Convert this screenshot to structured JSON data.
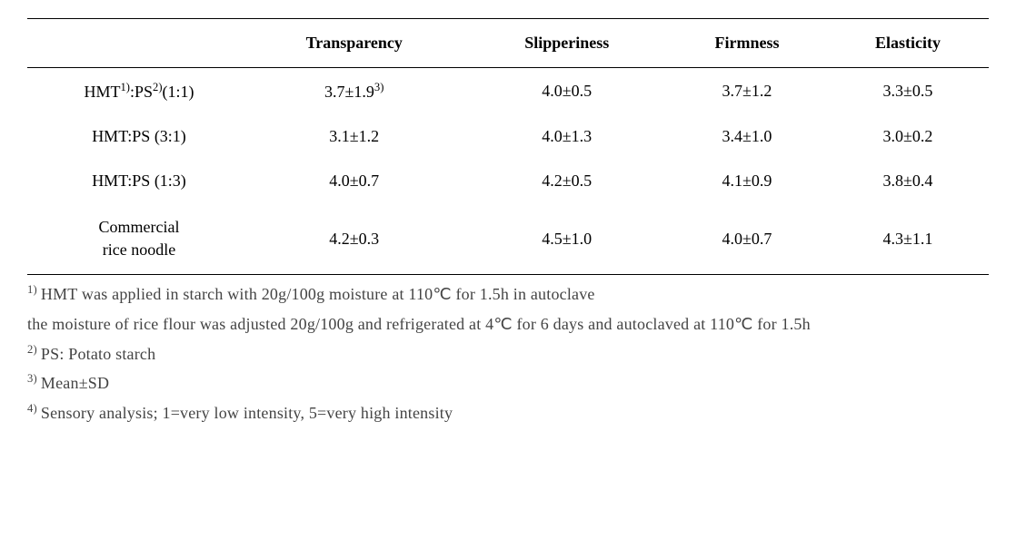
{
  "table": {
    "columns": [
      "",
      "Transparency",
      "Slipperiness",
      "Firmness",
      "Elasticity"
    ],
    "rows": [
      {
        "label_html": "HMT<sup>1)</sup>:PS<sup>2)</sup>(1:1)",
        "transparency_html": "3.7±1.9<sup>3)</sup>",
        "slipperiness": "4.0±0.5",
        "firmness": "3.7±1.2",
        "elasticity": "3.3±0.5"
      },
      {
        "label": "HMT:PS (3:1)",
        "transparency": "3.1±1.2",
        "slipperiness": "4.0±1.3",
        "firmness": "3.4±1.0",
        "elasticity": "3.0±0.2"
      },
      {
        "label": "HMT:PS (1:3)",
        "transparency": "4.0±0.7",
        "slipperiness": "4.2±0.5",
        "firmness": "4.1±0.9",
        "elasticity": "3.8±0.4"
      },
      {
        "label_html": "Commercial<br>rice noodle",
        "transparency": "4.2±0.3",
        "slipperiness": "4.5±1.0",
        "firmness": "4.0±0.7",
        "elasticity": "4.3±1.1"
      }
    ],
    "header_fontsize": 18,
    "cell_fontsize": 18,
    "border_color": "#000000",
    "background_color": "#ffffff"
  },
  "footnotes": {
    "f1_sup": "1)",
    "f1_line1": "HMT was applied in starch with 20g/100g moisture at 110℃ for 1.5h in autoclave",
    "f1_line2": "the moisture of rice flour was adjusted 20g/100g and refrigerated at 4℃ for 6 days and autoclaved at 110℃ for 1.5h",
    "f2_sup": "2)",
    "f2": "PS: Potato starch",
    "f3_sup": "3)",
    "f3": "Mean±SD",
    "f4_sup": "4)",
    "f4": "Sensory analysis; 1=very low intensity, 5=very high intensity"
  }
}
